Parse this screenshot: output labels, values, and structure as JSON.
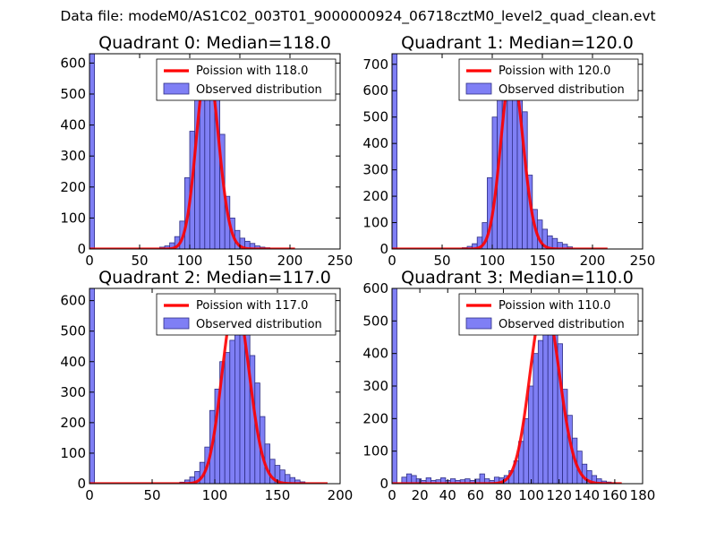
{
  "figure": {
    "suptitle": "Data file: modeM0/AS1C02_003T01_9000000924_06718cztM0_level2_quad_clean.evt"
  },
  "colors": {
    "bar_fill": "#7f7ff5",
    "bar_edge": "#2f2f86",
    "curve": "#ff0000"
  },
  "chart_data": [
    {
      "type": "bar",
      "title": "Quadrant 0: Median=118.0",
      "legend": [
        "Poission with 118.0",
        "Observed distribution"
      ],
      "legend_position": "top-right",
      "xlim": [
        0,
        250
      ],
      "ylim": [
        0,
        630
      ],
      "xticks": [
        0,
        50,
        100,
        150,
        200,
        250
      ],
      "yticks": [
        0,
        100,
        200,
        300,
        400,
        500,
        600
      ],
      "bin_width": 5,
      "bin_starts": [
        0,
        70,
        75,
        80,
        85,
        90,
        95,
        100,
        105,
        110,
        115,
        120,
        125,
        130,
        135,
        140,
        145,
        150,
        155,
        160,
        165,
        170,
        175
      ],
      "values": [
        630,
        6,
        10,
        20,
        40,
        90,
        230,
        380,
        540,
        560,
        600,
        580,
        520,
        370,
        170,
        100,
        60,
        35,
        25,
        18,
        10,
        6,
        4
      ],
      "curve": {
        "mean": 118.0,
        "peak": 600,
        "x_range": [
          0,
          205
        ]
      }
    },
    {
      "type": "bar",
      "title": "Quadrant 1: Median=120.0",
      "legend": [
        "Poission with 120.0",
        "Observed distribution"
      ],
      "legend_position": "top-right",
      "xlim": [
        0,
        250
      ],
      "ylim": [
        0,
        740
      ],
      "xticks": [
        0,
        50,
        100,
        150,
        200,
        250
      ],
      "yticks": [
        0,
        100,
        200,
        300,
        400,
        500,
        600,
        700
      ],
      "bin_width": 5,
      "bin_starts": [
        0,
        70,
        75,
        80,
        85,
        90,
        95,
        100,
        105,
        110,
        115,
        120,
        125,
        130,
        135,
        140,
        145,
        150,
        155,
        160,
        165,
        170,
        175
      ],
      "values": [
        740,
        5,
        10,
        20,
        45,
        100,
        270,
        500,
        600,
        640,
        700,
        650,
        600,
        520,
        280,
        150,
        110,
        75,
        50,
        40,
        25,
        18,
        8
      ],
      "curve": {
        "mean": 120.0,
        "peak": 680,
        "x_range": [
          0,
          215
        ]
      }
    },
    {
      "type": "bar",
      "title": "Quadrant 2: Median=117.0",
      "legend": [
        "Poission with 117.0",
        "Observed distribution"
      ],
      "legend_position": "top-right",
      "xlim": [
        0,
        200
      ],
      "ylim": [
        0,
        640
      ],
      "xticks": [
        0,
        50,
        100,
        150,
        200
      ],
      "yticks": [
        0,
        100,
        200,
        300,
        400,
        500,
        600
      ],
      "bin_width": 4,
      "bin_starts": [
        0,
        72,
        76,
        80,
        84,
        88,
        92,
        96,
        100,
        104,
        108,
        112,
        116,
        120,
        124,
        128,
        132,
        136,
        140,
        144,
        148,
        152,
        156,
        160,
        164,
        168
      ],
      "values": [
        640,
        5,
        12,
        22,
        40,
        70,
        120,
        240,
        310,
        400,
        430,
        470,
        520,
        560,
        520,
        420,
        330,
        220,
        130,
        80,
        60,
        45,
        30,
        20,
        12,
        6
      ],
      "curve": {
        "mean": 117.0,
        "peak": 600,
        "x_range": [
          0,
          190
        ]
      }
    },
    {
      "type": "bar",
      "title": "Quadrant 3: Median=110.0",
      "legend": [
        "Poission with 110.0",
        "Observed distribution"
      ],
      "legend_position": "top-right",
      "xlim": [
        0,
        180
      ],
      "ylim": [
        0,
        600
      ],
      "xticks": [
        0,
        20,
        40,
        60,
        80,
        100,
        120,
        140,
        160,
        180
      ],
      "yticks": [
        0,
        100,
        200,
        300,
        400,
        500,
        600
      ],
      "bin_width": 3.5,
      "bin_starts": [
        0,
        7,
        10.5,
        14,
        17.5,
        21,
        24.5,
        28,
        31.5,
        35,
        38.5,
        42,
        45.5,
        49,
        52.5,
        56,
        59.5,
        63,
        66.5,
        70,
        73.5,
        77,
        80.5,
        84,
        87.5,
        91,
        94.5,
        98,
        101.5,
        105,
        108.5,
        112,
        115.5,
        119,
        122.5,
        126,
        129.5,
        133,
        136.5,
        140,
        143.5,
        147,
        150.5,
        154,
        157.5
      ],
      "values": [
        600,
        20,
        30,
        25,
        15,
        10,
        18,
        10,
        12,
        18,
        10,
        15,
        10,
        12,
        15,
        10,
        14,
        30,
        15,
        10,
        20,
        18,
        25,
        40,
        70,
        130,
        200,
        300,
        400,
        440,
        480,
        560,
        520,
        430,
        290,
        210,
        140,
        100,
        60,
        40,
        25,
        15,
        8,
        5,
        3
      ],
      "curve": {
        "mean": 110.0,
        "peak": 560,
        "x_range": [
          0,
          165
        ]
      }
    }
  ]
}
